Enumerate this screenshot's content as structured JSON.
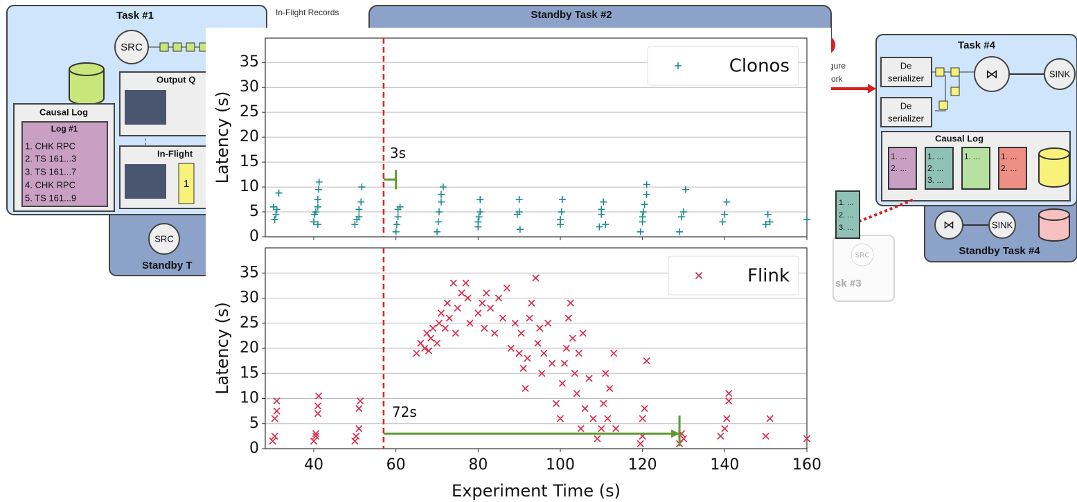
{
  "diagram": {
    "task1": {
      "title": "Task #1",
      "src": "SRC",
      "output_queue": "Output Q",
      "in_flight": "In-Flight",
      "buffer": "1",
      "causal_log": {
        "title": "Causal Log",
        "log": "Log #1",
        "entries": [
          "1. CHK RPC",
          "2. TS 161...3",
          "3. TS 161...7",
          "4. CHK RPC",
          "5. TS 161...9"
        ]
      }
    },
    "standby1": {
      "src": "SRC",
      "title": "Standby T"
    },
    "in_flight_records": "In-Flight Records",
    "standby2": {
      "title": "Standby Task #2"
    },
    "reconfigure": [
      "gure",
      "ork"
    ],
    "task4": {
      "title": "Task #4",
      "deserializer": [
        "De",
        "serializer"
      ],
      "join": "⋈",
      "sink": "SINK",
      "causal_log": "Causal Log",
      "logs": [
        [
          "1. ...",
          "2. ..."
        ],
        [
          "1. ...",
          "2. ...",
          "3. ..."
        ],
        [
          "1. ..."
        ],
        [
          "1. ...",
          "2. ..."
        ]
      ]
    },
    "shipped_log": [
      "1. ...",
      "2. ...",
      "3. ..."
    ],
    "standby4": {
      "join": "⋈",
      "sink": "SINK",
      "title": "Standby Task #4"
    },
    "task3": {
      "title": "sk #3",
      "src": "SRC"
    }
  },
  "chart_data": [
    {
      "type": "scatter",
      "ylabel": "Latency (s)",
      "xlim": [
        28.2,
        160
      ],
      "ylim": [
        0,
        39.9
      ],
      "xticks": [
        40,
        60,
        80,
        100,
        120,
        140,
        160
      ],
      "show_xtick_labels": false,
      "yticks": [
        0,
        5,
        10,
        15,
        20,
        25,
        30,
        35
      ],
      "grid": true,
      "legend": "upper right",
      "vline": {
        "x": 57,
        "color": "#e02020"
      },
      "annotations": [
        {
          "text": "3s",
          "x0": 57,
          "x1": 60,
          "y": 11.5,
          "color": "#5f9a32",
          "style": "bracket"
        }
      ],
      "series": [
        {
          "name": "Clonos",
          "color": "#1a8a8a",
          "marker": "+",
          "x": [
            30.5,
            30.8,
            31,
            31.5,
            30.2,
            40,
            40.2,
            40.5,
            41,
            41,
            41.2,
            41.3,
            41,
            50,
            50.5,
            51,
            51,
            51.5,
            51.7,
            60,
            60.2,
            60.5,
            60.5,
            61,
            70,
            70.3,
            70.5,
            71,
            71,
            71.5,
            80,
            80,
            80.2,
            80.5,
            80.5,
            89.5,
            90,
            90,
            90.2,
            100,
            100,
            100.3,
            100.5,
            109.5,
            110,
            110,
            110.5,
            111,
            119.5,
            120,
            120.2,
            120.5,
            121,
            121,
            120,
            129,
            129.5,
            130,
            130.5,
            139.5,
            140,
            140.5,
            150,
            150.5,
            151,
            160
          ],
          "values": [
            3.5,
            4.5,
            5.5,
            8.8,
            6,
            3,
            4.5,
            5,
            6,
            7.5,
            9.5,
            11,
            2.5,
            2.5,
            3.5,
            4,
            5.5,
            7,
            10,
            1,
            2.5,
            4,
            5.5,
            6,
            1,
            3,
            5,
            7,
            8.5,
            10,
            2,
            3,
            4,
            5,
            7.5,
            4.5,
            5,
            7.5,
            1.5,
            2.5,
            3.5,
            5,
            7.5,
            2,
            4.5,
            5.5,
            7,
            2.5,
            1,
            3,
            5,
            6.5,
            8.5,
            10.5,
            4,
            1,
            4,
            5,
            9.5,
            3,
            4.5,
            7,
            2.5,
            4.5,
            3,
            3.5
          ]
        }
      ]
    },
    {
      "type": "scatter",
      "ylabel": "Latency (s)",
      "xlabel": "Experiment Time (s)",
      "xlim": [
        28.2,
        160
      ],
      "ylim": [
        0,
        40
      ],
      "xticks": [
        40,
        60,
        80,
        100,
        120,
        140,
        160
      ],
      "show_xtick_labels": true,
      "yticks": [
        0,
        5,
        10,
        15,
        20,
        25,
        30,
        35
      ],
      "grid": true,
      "legend": "upper right",
      "vline": {
        "x": 57,
        "color": "#e02020"
      },
      "annotations": [
        {
          "text": "72s",
          "x0": 57,
          "x1": 129,
          "y": 3,
          "color": "#5f9a32",
          "style": "arrow"
        }
      ],
      "series": [
        {
          "name": "Flink",
          "color": "#dc2a48",
          "marker": "x",
          "x": [
            30,
            30.5,
            30.5,
            31,
            31,
            40,
            40.5,
            40.5,
            41,
            41,
            41.2,
            50,
            50.3,
            51,
            51,
            51.3,
            65,
            66,
            67,
            67.5,
            68,
            68.5,
            69,
            70,
            70.5,
            71,
            72,
            72.5,
            73,
            74,
            74.5,
            75,
            76,
            77,
            77.5,
            78,
            80,
            81,
            81.5,
            82,
            83,
            84,
            85,
            86,
            87,
            88,
            89,
            90,
            90.5,
            91,
            91.5,
            92,
            92.5,
            93,
            94,
            94.5,
            95,
            95.5,
            96,
            97,
            98,
            99,
            100,
            100.5,
            101,
            101.5,
            102,
            102.5,
            103,
            103.5,
            104,
            104.5,
            105,
            105.5,
            106,
            107,
            108,
            109,
            110,
            110.5,
            111,
            111.5,
            112,
            113,
            113.5,
            119.5,
            120,
            120,
            120.5,
            121,
            129,
            129.5,
            130,
            139,
            140,
            140.5,
            141,
            141,
            150,
            151,
            160
          ],
          "values": [
            1.5,
            2.5,
            6,
            7.5,
            9.5,
            1.5,
            2.5,
            3,
            7,
            8.5,
            10.5,
            1.5,
            2.5,
            4,
            8,
            9.5,
            19,
            21,
            20,
            23,
            19.5,
            22,
            24,
            21,
            25,
            27,
            24,
            29,
            26,
            33,
            23,
            28,
            31,
            33,
            30,
            25,
            27,
            29,
            24,
            31,
            28,
            23,
            30,
            26,
            32,
            20,
            25,
            19,
            23,
            16,
            12,
            18,
            26,
            29,
            34,
            21,
            24,
            15,
            19,
            25,
            17,
            9,
            6,
            13,
            17,
            20,
            26,
            29,
            22,
            15,
            11,
            19,
            4,
            23,
            8,
            14,
            6,
            2,
            4,
            9,
            15,
            6,
            12,
            19,
            4,
            1,
            2.5,
            6,
            8,
            17.5,
            1,
            3,
            2,
            2.5,
            4,
            6,
            9.5,
            11,
            2.5,
            6,
            2
          ]
        }
      ]
    }
  ]
}
